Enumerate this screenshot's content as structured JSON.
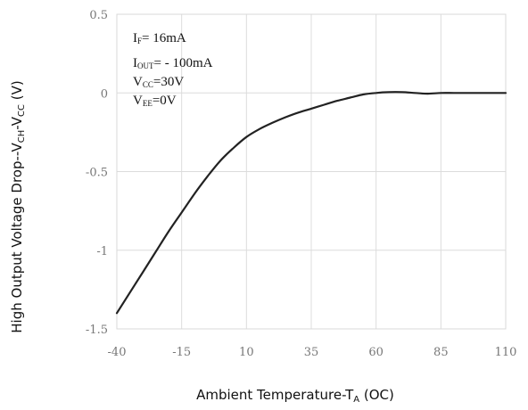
{
  "chart_data": {
    "type": "line",
    "xlabel": {
      "main": "Ambient Temperature-T",
      "sub": "A",
      "unit": " (OC)"
    },
    "ylabel": {
      "main": "High Output Voltage Drop--V",
      "sub1": "CH",
      "mid": "-V",
      "sub2": "CC",
      "unit": "  (V)"
    },
    "xlim": [
      -40,
      110
    ],
    "ylim": [
      -1.5,
      0.5
    ],
    "xticks": [
      -40,
      -15,
      10,
      35,
      60,
      85,
      110
    ],
    "xtick_labels": [
      "-40",
      "-15",
      "10",
      "35",
      "60",
      "85",
      "110"
    ],
    "yticks": [
      0.5,
      0,
      -0.5,
      -1,
      -1.5
    ],
    "ytick_labels": [
      "0.5",
      "0",
      "-0.5",
      "-1",
      "-1.5"
    ],
    "grid": true,
    "series": [
      {
        "color": "#222222",
        "x": [
          -40,
          -35,
          -30,
          -25,
          -20,
          -15,
          -10,
          -5,
          0,
          5,
          10,
          15,
          20,
          25,
          30,
          35,
          40,
          45,
          50,
          55,
          60,
          65,
          70,
          75,
          80,
          85,
          90,
          95,
          100,
          105,
          110
        ],
        "y": [
          -1.4,
          -1.27,
          -1.14,
          -1.01,
          -0.88,
          -0.76,
          -0.64,
          -0.53,
          -0.43,
          -0.35,
          -0.28,
          -0.23,
          -0.19,
          -0.155,
          -0.125,
          -0.1,
          -0.075,
          -0.05,
          -0.03,
          -0.01,
          0.0,
          0.005,
          0.005,
          0.0,
          -0.005,
          0.0,
          0.0,
          0.0,
          0.0,
          0.0,
          0.0
        ]
      }
    ],
    "annotations": [
      {
        "main": "I",
        "sub": "F",
        "rest": "= 16mA"
      },
      {
        "main": "I",
        "sub": "OUT",
        "rest": "= - 100mA"
      },
      {
        "main": "V",
        "sub": "CC",
        "rest": "=30V"
      },
      {
        "main": "V",
        "sub": "EE",
        "rest": "=0V"
      }
    ]
  }
}
